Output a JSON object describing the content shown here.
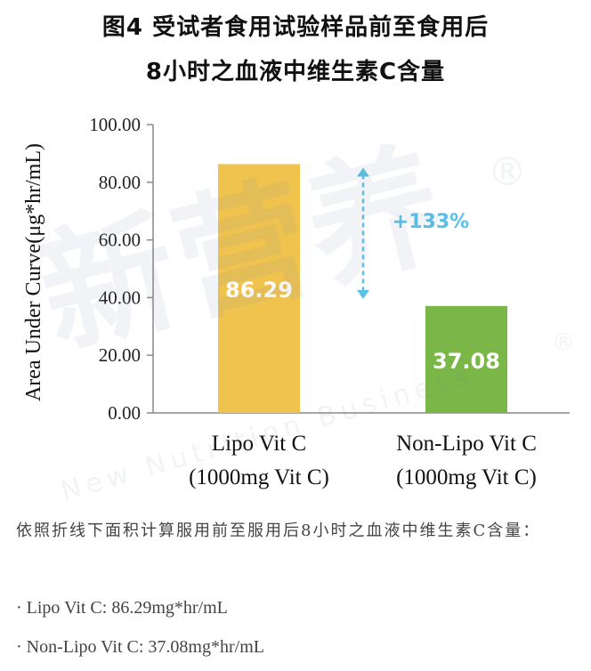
{
  "title": {
    "line1": "图4 受试者食用试验样品前至食用后",
    "line2": "8小时之血液中维生素C含量"
  },
  "colors": {
    "bar_lipo": "#f0c34e",
    "bar_nonlipo": "#7ab648",
    "arrow": "#5bc0e6",
    "axis": "#888888"
  },
  "chart_data": {
    "type": "bar",
    "categories": [
      "Lipo Vit C\n(1000mg Vit C)",
      "Non-Lipo Vit C\n(1000mg Vit C)"
    ],
    "category_lines": [
      [
        "Lipo Vit C",
        "(1000mg Vit C)"
      ],
      [
        "Non-Lipo Vit C",
        "(1000mg Vit C)"
      ]
    ],
    "values": [
      86.29,
      37.08
    ],
    "value_labels": [
      "86.29",
      "37.08"
    ],
    "ylabel": "Area Under Curve(μg*hr/mL)",
    "ylim": [
      0,
      100
    ],
    "yticks": [
      "0.00",
      "20.00",
      "40.00",
      "60.00",
      "80.00",
      "100.00"
    ],
    "annotation": "+133%",
    "grid": false
  },
  "caption": {
    "intro": "依照折线下面积计算服用前至服用后8小时之血液中维生素C含量：",
    "bullets": [
      "· Lipo Vit C: 86.29mg*hr/mL",
      "· Non-Lipo Vit C: 37.08mg*hr/mL"
    ]
  },
  "watermark": {
    "chinese": "新营养",
    "english": "New Nutrition Business",
    "mark": "®"
  }
}
